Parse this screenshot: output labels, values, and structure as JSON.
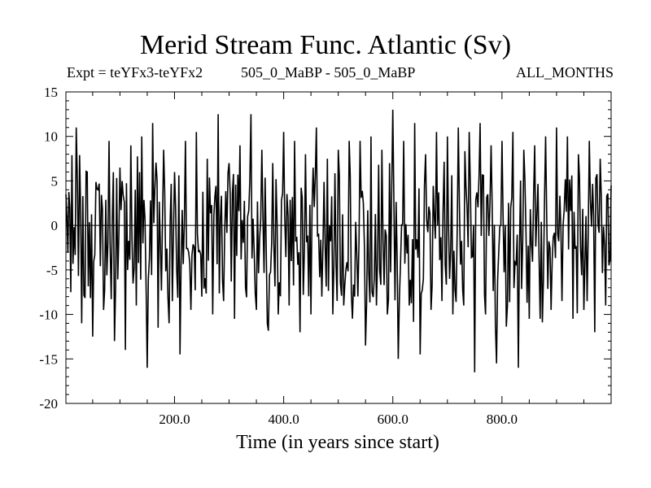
{
  "chart_data": {
    "type": "line",
    "title": "Merid Stream Func. Atlantic (Sv)",
    "subtitles": {
      "left": "Expt = teYFx3-teYFx2",
      "center": "505_0_MaBP - 505_0_MaBP",
      "right": "ALL_MONTHS"
    },
    "xlabel": "Time (in years since start)",
    "ylabel": "",
    "xlim": [
      1,
      1000
    ],
    "ylim": [
      -20,
      15
    ],
    "x_ticks": [
      200,
      400,
      600,
      800
    ],
    "x_tick_labels": [
      "200.0",
      "400.0",
      "600.0",
      "800.0"
    ],
    "y_ticks": [
      15,
      10,
      5,
      0,
      -5,
      -10,
      -15,
      -20
    ],
    "y_tick_labels": [
      "15",
      "10",
      "5",
      "0",
      "-5",
      "-10",
      "-15",
      "-20"
    ],
    "zero_line": true,
    "grid": false,
    "series": [
      {
        "name": "Merid Stream Func. Atlantic",
        "x": [
          1,
          10,
          20,
          30,
          40,
          50,
          60,
          70,
          80,
          90,
          100,
          110,
          120,
          130,
          140,
          150,
          160,
          170,
          180,
          190,
          200,
          210,
          220,
          230,
          240,
          250,
          260,
          270,
          280,
          290,
          300,
          310,
          320,
          330,
          340,
          350,
          360,
          370,
          380,
          390,
          400,
          410,
          420,
          430,
          440,
          450,
          460,
          470,
          480,
          490,
          500,
          510,
          520,
          530,
          540,
          550,
          560,
          570,
          580,
          590,
          600,
          610,
          620,
          630,
          640,
          650,
          660,
          670,
          680,
          690,
          700,
          710,
          720,
          730,
          740,
          750,
          760,
          770,
          780,
          790,
          800,
          810,
          820,
          830,
          840,
          850,
          860,
          870,
          880,
          890,
          900,
          910,
          920,
          930,
          940,
          950,
          960,
          970,
          980,
          990,
          1000
        ],
        "values": [
          3.5,
          -7.5,
          11.0,
          -11.0,
          6.0,
          -12.5,
          4.0,
          -9.5,
          9.5,
          -13.0,
          6.5,
          -14.0,
          9.0,
          -9.0,
          10.0,
          -16.0,
          11.5,
          -11.5,
          8.5,
          -11.0,
          6.0,
          -14.5,
          9.5,
          -9.5,
          10.5,
          -8.0,
          7.5,
          -10.0,
          12.5,
          -8.5,
          7.0,
          -10.5,
          9.0,
          -7.0,
          12.5,
          -9.5,
          8.5,
          -11.0,
          7.0,
          -10.0,
          10.5,
          -9.0,
          9.5,
          -12.0,
          8.0,
          -10.0,
          11.0,
          -8.0,
          7.5,
          -10.0,
          8.5,
          -9.0,
          9.5,
          -8.0,
          9.5,
          -13.5,
          10.0,
          -9.0,
          8.5,
          -10.0,
          13.0,
          -15.0,
          9.5,
          -9.0,
          11.5,
          -14.5,
          8.0,
          -9.5,
          10.5,
          -8.5,
          10.0,
          -10.0,
          11.0,
          -9.0,
          10.5,
          -16.5,
          11.5,
          -10.0,
          9.0,
          -15.5,
          9.5,
          -9.0,
          10.5,
          -16.0,
          8.5,
          -10.5,
          9.0,
          -10.5,
          10.0,
          -9.5,
          11.0,
          -8.5,
          10.0,
          -10.5,
          8.0,
          -9.5,
          9.5,
          -12.0,
          7.5,
          -9.0,
          4.5
        ]
      }
    ]
  }
}
